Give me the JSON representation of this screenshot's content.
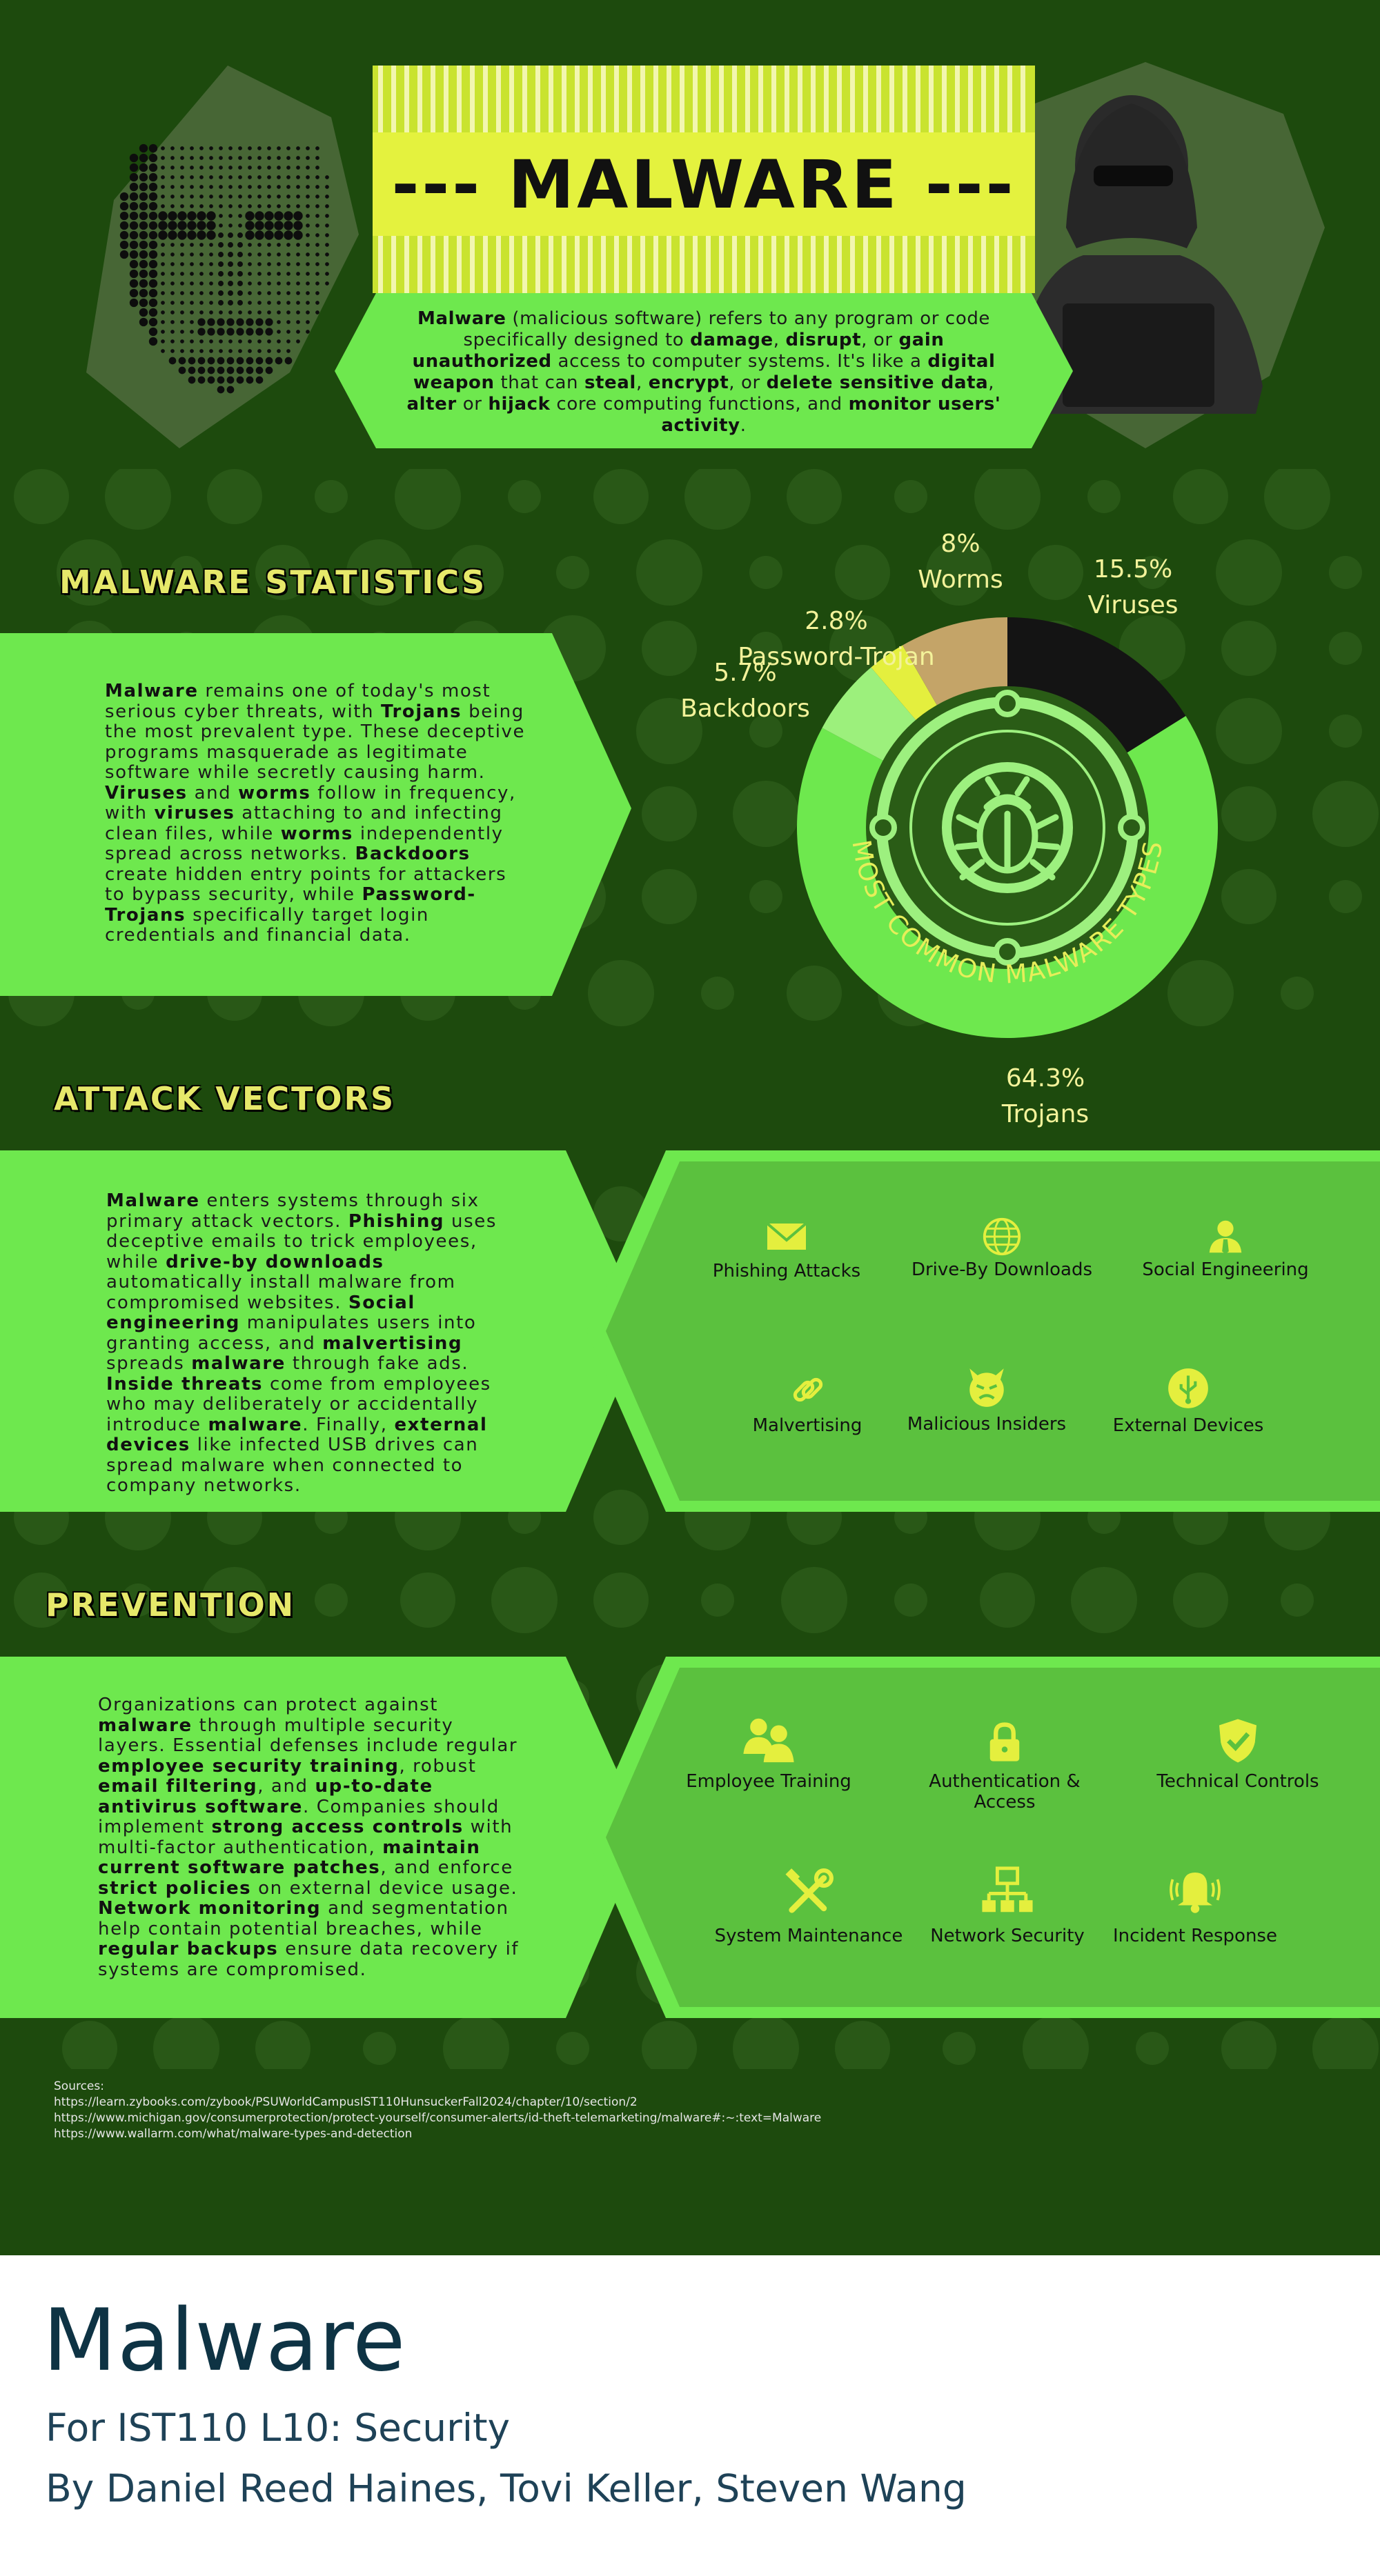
{
  "header": {
    "title": "--- MALWARE ---",
    "intro_html": "<b>Malware</b> (malicious software) refers to any program or code specifically designed to <b>damage</b>, <b>disrupt</b>, or <b>gain unauthorized</b> access to computer systems. It's like a <b>digital weapon</b> that can <b>steal</b>, <b>encrypt</b>, or <b>delete sensitive data</b>, <b>alter</b> or <b>hijack</b> core computing functions, and <b>monitor users' activity</b>."
  },
  "statistics": {
    "heading": "MALWARE STATISTICS",
    "body_html": "<b>Malware</b> remains one of today's most serious cyber threats, with <b>Trojans</b> being the most prevalent type. These deceptive programs masquerade as legitimate software while secretly causing harm. <b>Viruses</b> and <b>worms</b> follow in frequency, with <b>viruses</b> attaching to and infecting clean files, while <b>worms</b> independently spread across networks. <b>Backdoors</b> create hidden entry points for attackers to bypass security, while <b>Password-Trojans</b> specifically target login credentials and financial data.",
    "ring_label": "MOST COMMON MALWARE TYPES"
  },
  "chart_data": {
    "type": "pie",
    "title": "MOST COMMON MALWARE TYPES",
    "slices": [
      {
        "label": "Viruses",
        "value": 15.5,
        "display": "15.5%",
        "color": "#141414"
      },
      {
        "label": "Trojans",
        "value": 64.3,
        "display": "64.3%",
        "color": "#6ee84e"
      },
      {
        "label": "Backdoors",
        "value": 5.7,
        "display": "5.7%",
        "color": "#9cf07c"
      },
      {
        "label": "Password-Trojan",
        "value": 2.8,
        "display": "2.8%",
        "color": "#e4ef3e"
      },
      {
        "label": "Worms",
        "value": 8,
        "display": "8%",
        "color": "#c4a468"
      }
    ]
  },
  "attack": {
    "heading": "ATTACK VECTORS",
    "body_html": "<b>Malware</b> enters systems through six primary attack vectors. <b>Phishing</b> uses deceptive emails to trick employees, while <b>drive-by downloads</b> automatically install malware from compromised websites. <b>Social engineering</b> manipulates users into granting access, and <b>malvertising</b> spreads <b>malware</b> through fake ads. <b>Inside threats</b> come from employees who may deliberately or accidentally introduce <b>malware</b>. Finally, <b>external devices</b> like infected USB drives can spread malware when connected to company networks.",
    "items": [
      {
        "label": "Phishing Attacks",
        "icon": "envelope-icon"
      },
      {
        "label": "Drive-By Downloads",
        "icon": "globe-icon"
      },
      {
        "label": "Social Engineering",
        "icon": "person-icon"
      },
      {
        "label": "Malvertising",
        "icon": "link-icon"
      },
      {
        "label": "Malicious Insiders",
        "icon": "devil-face-icon"
      },
      {
        "label": "External Devices",
        "icon": "usb-icon"
      }
    ]
  },
  "prevention": {
    "heading": "PREVENTION",
    "body_html": "Organizations can protect against <b>malware</b> through multiple security layers. Essential defenses include regular <b>employee security training</b>, robust <b>email filtering</b>, and <b>up-to-date antivirus software</b>. Companies should implement <b>strong access controls</b> with multi-factor authentication, <b>maintain current software patches</b>, and enforce <b>strict policies</b> on external device usage. <b>Network monitoring</b> and segmentation help contain potential breaches, while <b>regular backups</b> ensure data recovery if systems are compromised.",
    "items": [
      {
        "label": "Employee Training",
        "icon": "users-icon"
      },
      {
        "label": "Authentication & Access",
        "icon": "lock-icon"
      },
      {
        "label": "Technical Controls",
        "icon": "shield-check-icon"
      },
      {
        "label": "System Maintenance",
        "icon": "tools-icon"
      },
      {
        "label": "Network Security",
        "icon": "network-icon"
      },
      {
        "label": "Incident Response",
        "icon": "bell-icon"
      }
    ]
  },
  "sources": {
    "heading": "Sources:",
    "urls": [
      "https://learn.zybooks.com/zybook/PSUWorldCampusIST110HunsuckerFall2024/chapter/10/section/2",
      "https://www.michigan.gov/consumerprotection/protect-yourself/consumer-alerts/id-theft-telemarketing/malware#:~:text=Malware",
      "https://www.wallarm.com/what/malware-types-and-detection"
    ]
  },
  "footer": {
    "title": "Malware",
    "course": "For IST110 L10: Security",
    "authors": "By Daniel Reed Haines, Tovi Keller, Steven Wang"
  },
  "colors": {
    "background": "#1d4a0d",
    "panel": "#6ee84e",
    "panel_dark": "#5bc13e",
    "accent": "#d9ee3c",
    "heading": "#e6e86a"
  }
}
